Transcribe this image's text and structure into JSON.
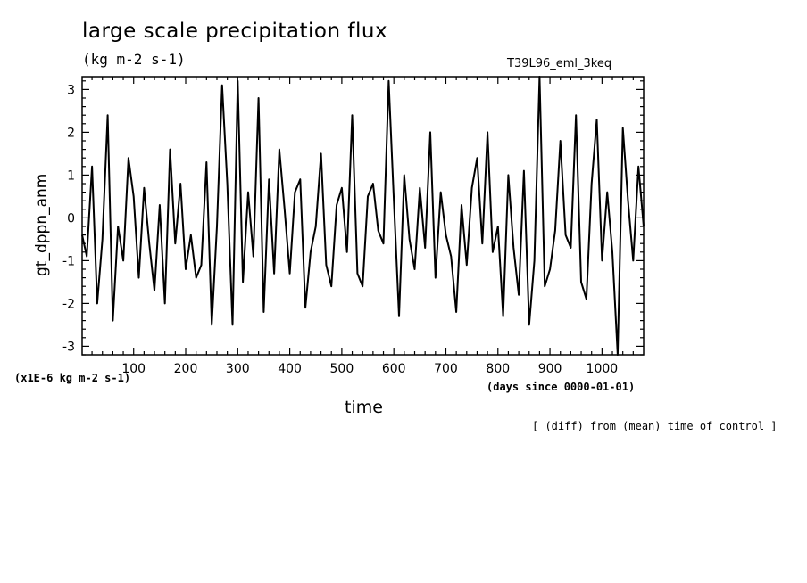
{
  "chart_data": {
    "type": "line",
    "title": "large scale precipitation flux",
    "subtitle": "(kg m-2 s-1)",
    "run_label": "T39L96_eml_3keq",
    "xlabel": "time",
    "x_unit_label": "(days since 0000-01-01)",
    "ylabel": "gt_dppn_anm",
    "y_scale_label": "(x1E-6 kg m-2 s-1)",
    "note": "[ (diff) from (mean) time of control ]",
    "xlim": [
      1,
      1080
    ],
    "ylim": [
      -3.2,
      3.3
    ],
    "x_ticks": [
      "100",
      "200",
      "300",
      "400",
      "500",
      "600",
      "700",
      "800",
      "900",
      "1000"
    ],
    "y_ticks": [
      "3",
      "2",
      "1",
      "0",
      "-1",
      "-2",
      "-3"
    ],
    "grid": false,
    "legend": "none",
    "line_color": "#000000",
    "series": [
      {
        "x": [
          1,
          10,
          20,
          30,
          40,
          50,
          60,
          70,
          80,
          90,
          100,
          110,
          120,
          130,
          140,
          150,
          160,
          170,
          180,
          190,
          200,
          210,
          220,
          230,
          240,
          250,
          260,
          270,
          280,
          290,
          300,
          310,
          320,
          330,
          340,
          350,
          360,
          370,
          380,
          390,
          400,
          410,
          420,
          430,
          440,
          450,
          460,
          470,
          480,
          490,
          500,
          510,
          520,
          530,
          540,
          550,
          560,
          570,
          580,
          590,
          600,
          610,
          620,
          630,
          640,
          650,
          660,
          670,
          680,
          690,
          700,
          710,
          720,
          730,
          740,
          750,
          760,
          770,
          780,
          790,
          800,
          810,
          820,
          830,
          840,
          850,
          860,
          870,
          880,
          890,
          900,
          910,
          920,
          930,
          940,
          950,
          960,
          970,
          980,
          990,
          1000,
          1010,
          1020,
          1030,
          1040,
          1050,
          1060,
          1070,
          1080
        ],
        "values": [
          -0.4,
          -0.9,
          1.2,
          -2.0,
          -0.5,
          2.4,
          -2.4,
          -0.2,
          -1.0,
          1.4,
          0.5,
          -1.4,
          0.7,
          -0.6,
          -1.7,
          0.3,
          -2.0,
          1.6,
          -0.6,
          0.8,
          -1.2,
          -0.4,
          -1.4,
          -1.1,
          1.3,
          -2.5,
          -0.2,
          3.1,
          0.8,
          -2.5,
          3.2,
          -1.5,
          0.6,
          -0.9,
          2.8,
          -2.2,
          0.9,
          -1.3,
          1.6,
          0.2,
          -1.3,
          0.6,
          0.9,
          -2.1,
          -0.8,
          -0.2,
          1.5,
          -1.1,
          -1.6,
          0.3,
          0.7,
          -0.8,
          2.4,
          -1.3,
          -1.6,
          0.5,
          0.8,
          -0.3,
          -0.6,
          3.2,
          0.4,
          -2.3,
          1.0,
          -0.5,
          -1.2,
          0.7,
          -0.7,
          2.0,
          -1.4,
          0.6,
          -0.4,
          -0.9,
          -2.2,
          0.3,
          -1.1,
          0.7,
          1.4,
          -0.6,
          2.0,
          -0.8,
          -0.2,
          -2.3,
          1.0,
          -0.7,
          -1.8,
          1.1,
          -2.5,
          -1.0,
          3.3,
          -1.6,
          -1.2,
          -0.3,
          1.8,
          -0.4,
          -0.7,
          2.4,
          -1.5,
          -1.9,
          0.8,
          2.3,
          -1.0,
          0.6,
          -0.8,
          -3.2,
          2.1,
          0.4,
          -1.0,
          1.2,
          -0.2
        ]
      }
    ]
  }
}
